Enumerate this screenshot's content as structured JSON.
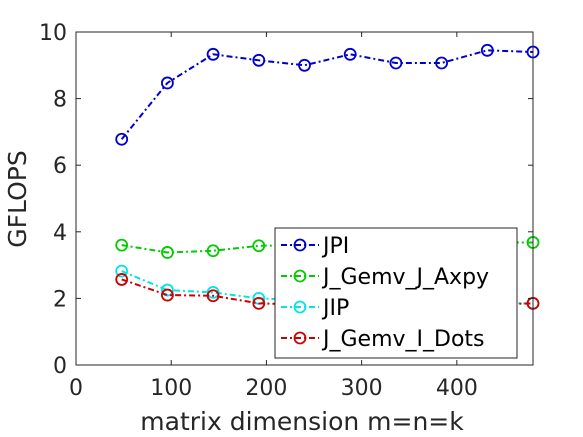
{
  "chart_data": {
    "type": "line",
    "xlabel": "matrix dimension m=n=k",
    "ylabel": "GFLOPS",
    "xlim": [
      0,
      480
    ],
    "ylim": [
      0,
      10
    ],
    "xticks": [
      0,
      100,
      200,
      300,
      400
    ],
    "yticks": [
      0,
      2,
      4,
      6,
      8,
      10
    ],
    "grid": false,
    "legend_position": "lower-right",
    "x": [
      48,
      96,
      144,
      192,
      240,
      288,
      336,
      384,
      432,
      480
    ],
    "series": [
      {
        "name": "JPI",
        "color": "#0000cc",
        "marker": "circle",
        "line_style": "dash-dot",
        "values": [
          6.78,
          8.47,
          9.33,
          9.15,
          9.0,
          9.33,
          9.07,
          9.07,
          9.45,
          9.4
        ]
      },
      {
        "name": "J_Gemv_J_Axpy",
        "color": "#00cc00",
        "marker": "circle",
        "line_style": "dash-dot",
        "values": [
          3.6,
          3.38,
          3.43,
          3.58,
          3.6,
          3.65,
          3.63,
          3.65,
          3.68,
          3.68
        ]
      },
      {
        "name": "JIP",
        "color": "#00e5e5",
        "marker": "circle",
        "line_style": "dash-dot",
        "values": [
          2.82,
          2.25,
          2.18,
          2.0,
          1.95,
          1.9,
          1.88,
          1.87,
          1.86,
          1.85
        ]
      },
      {
        "name": "J_Gemv_I_Dots",
        "color": "#cc0000",
        "marker": "circle",
        "line_style": "dash-dot",
        "values": [
          2.57,
          2.1,
          2.08,
          1.85,
          1.82,
          1.8,
          1.8,
          1.8,
          1.82,
          1.85
        ]
      }
    ]
  }
}
